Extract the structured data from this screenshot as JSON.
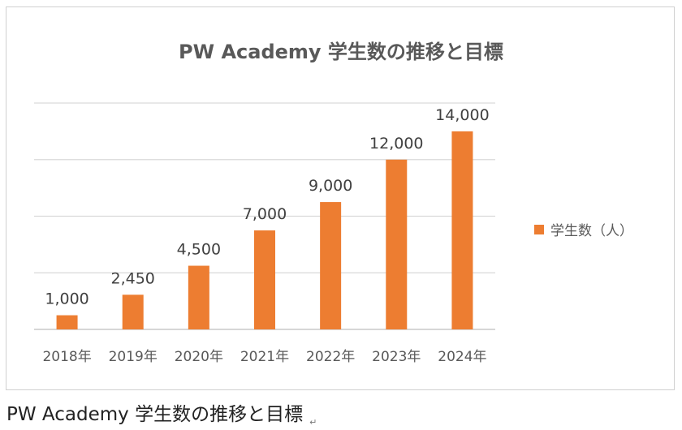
{
  "chart_data": {
    "type": "bar",
    "title": "PW Academy 学生数の推移と目標",
    "categories": [
      "2018年",
      "2019年",
      "2020年",
      "2021年",
      "2022年",
      "2023年",
      "2024年"
    ],
    "series": [
      {
        "name": "学生数（人）",
        "values": [
          1000,
          2450,
          4500,
          7000,
          9000,
          12000,
          14000
        ],
        "labels": [
          "1,000",
          "2,450",
          "4,500",
          "7,000",
          "9,000",
          "12,000",
          "14,000"
        ],
        "color": "#ED7D31"
      }
    ],
    "ylim": [
      0,
      16000
    ],
    "grid": true,
    "legend_position": "right"
  },
  "caption": {
    "text": "PW Academy 学生数の推移と目標",
    "mark": "↵"
  }
}
